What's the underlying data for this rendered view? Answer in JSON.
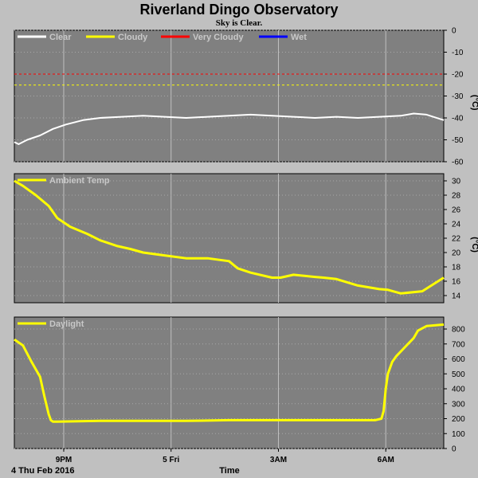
{
  "title": "Riverland Dingo Observatory",
  "subtitle": "Sky is Clear.",
  "x_ticks": [
    "9PM",
    "5 Fri",
    "3AM",
    "6AM"
  ],
  "date_label": "4 Thu Feb 2016",
  "xlabel": "Time",
  "colors": {
    "clear": "#ffffff",
    "cloudy": "#ffff00",
    "very_cloudy": "#ff0000",
    "wet": "#0000ff",
    "panel_bg": "#808080",
    "grid": "#c0c0c0"
  },
  "chart_data": [
    {
      "type": "line",
      "legend": [
        "Clear",
        "Cloudy",
        "Very Cloudy",
        "Wet"
      ],
      "unit": "(°C)",
      "ylim": [
        -60,
        0
      ],
      "yticks": [
        0,
        -10,
        -20,
        -30,
        -40,
        -50,
        -60
      ],
      "thresholds": [
        {
          "y": -20,
          "color": "#ff0000"
        },
        {
          "y": -25,
          "color": "#ffff00"
        }
      ],
      "series": [
        {
          "name": "Clear",
          "color": "#ffffff",
          "x": [
            0,
            0.01,
            0.03,
            0.06,
            0.09,
            0.12,
            0.16,
            0.2,
            0.25,
            0.3,
            0.35,
            0.4,
            0.45,
            0.5,
            0.55,
            0.6,
            0.65,
            0.7,
            0.75,
            0.8,
            0.85,
            0.9,
            0.93,
            0.96,
            1.0
          ],
          "y": [
            -51,
            -52,
            -50,
            -48,
            -45,
            -43,
            -41,
            -40,
            -39.5,
            -39,
            -39.5,
            -40,
            -39.5,
            -39,
            -38.5,
            -39,
            -39.5,
            -40,
            -39.5,
            -40,
            -39.5,
            -39,
            -38,
            -38.5,
            -41
          ]
        }
      ]
    },
    {
      "type": "line",
      "legend": [
        "Ambient Temp"
      ],
      "unit": "(°C)",
      "ylim": [
        13,
        31
      ],
      "yticks": [
        30,
        28,
        26,
        24,
        22,
        20,
        18,
        16,
        14
      ],
      "series": [
        {
          "name": "Ambient Temp",
          "color": "#ffff00",
          "x": [
            0,
            0.02,
            0.05,
            0.08,
            0.1,
            0.13,
            0.17,
            0.2,
            0.24,
            0.27,
            0.3,
            0.35,
            0.4,
            0.45,
            0.5,
            0.52,
            0.55,
            0.6,
            0.62,
            0.65,
            0.7,
            0.72,
            0.75,
            0.8,
            0.85,
            0.87,
            0.9,
            0.95,
            1.0
          ],
          "y": [
            30,
            29.3,
            28,
            26.5,
            24.8,
            23.6,
            22.6,
            21.7,
            20.9,
            20.5,
            20,
            19.6,
            19.2,
            19.2,
            18.8,
            17.8,
            17.2,
            16.5,
            16.5,
            16.9,
            16.6,
            16.5,
            16.3,
            15.4,
            14.9,
            14.8,
            14.3,
            14.6,
            16.5
          ]
        }
      ]
    },
    {
      "type": "line",
      "legend": [
        "Daylight"
      ],
      "unit": "",
      "ylim": [
        0,
        880
      ],
      "yticks": [
        800,
        700,
        600,
        500,
        400,
        300,
        200,
        100,
        0
      ],
      "series": [
        {
          "name": "Daylight",
          "color": "#ffff00",
          "x": [
            0,
            0.02,
            0.04,
            0.06,
            0.07,
            0.08,
            0.085,
            0.09,
            0.1,
            0.2,
            0.3,
            0.4,
            0.5,
            0.6,
            0.7,
            0.8,
            0.84,
            0.855,
            0.86,
            0.865,
            0.87,
            0.88,
            0.89,
            0.91,
            0.93,
            0.94,
            0.96,
            1.0
          ],
          "y": [
            730,
            690,
            580,
            480,
            350,
            230,
            190,
            180,
            180,
            185,
            185,
            185,
            190,
            190,
            190,
            190,
            190,
            200,
            250,
            400,
            500,
            580,
            620,
            680,
            740,
            790,
            820,
            830
          ]
        }
      ]
    }
  ]
}
